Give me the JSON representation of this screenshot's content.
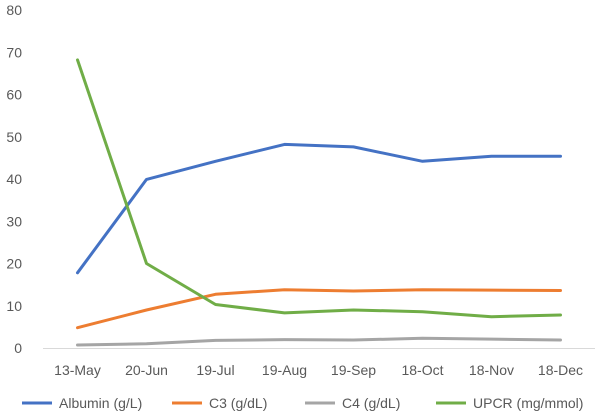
{
  "chart_data": {
    "type": "line",
    "title": "",
    "xlabel": "",
    "ylabel": "",
    "categories": [
      "13-May",
      "20-Jun",
      "19-Jul",
      "19-Aug",
      "19-Sep",
      "18-Oct",
      "18-Nov",
      "18-Dec"
    ],
    "ylim": [
      0,
      80
    ],
    "yticks": [
      0,
      10,
      20,
      30,
      40,
      50,
      60,
      70,
      80
    ],
    "grid": false,
    "legend": "bottom",
    "series": [
      {
        "name": "Albumin (g/L)",
        "color": "#4472C4",
        "values": [
          17.8,
          39.9,
          44.2,
          48.2,
          47.6,
          44.2,
          45.4,
          45.4
        ]
      },
      {
        "name": "C3 (g/dL)",
        "color": "#ED7D31",
        "values": [
          4.8,
          9.0,
          12.7,
          13.8,
          13.5,
          13.8,
          13.7,
          13.6
        ]
      },
      {
        "name": "C4 (g/dL)",
        "color": "#A5A5A5",
        "values": [
          0.7,
          1.0,
          1.8,
          2.0,
          1.9,
          2.3,
          2.1,
          1.9
        ]
      },
      {
        "name": "UPCR (mg/mmol)",
        "color": "#70AD47",
        "values": [
          68.2,
          20.0,
          10.3,
          8.3,
          9.0,
          8.6,
          7.4,
          7.8
        ]
      }
    ]
  }
}
